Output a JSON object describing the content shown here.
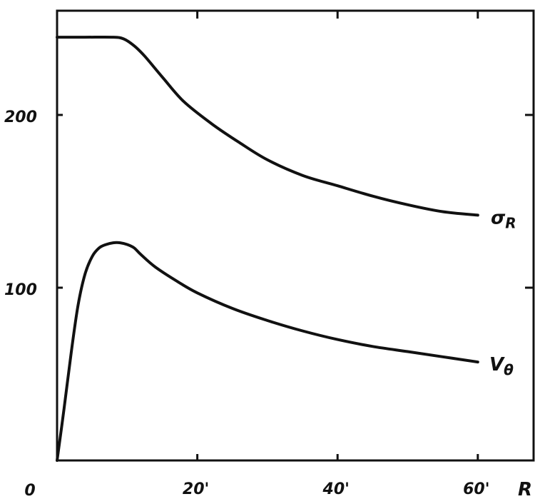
{
  "chart_data": {
    "type": "line",
    "title": "",
    "xlabel": "R",
    "ylabel": "",
    "xlim": [
      0,
      68
    ],
    "ylim": [
      0,
      250
    ],
    "grid": false,
    "origin_label": "0",
    "x_ticks": [
      {
        "value": 20,
        "label": "20'"
      },
      {
        "value": 40,
        "label": "40'"
      },
      {
        "value": 60,
        "label": "60'"
      }
    ],
    "y_ticks": [
      {
        "value": 100,
        "label": "100"
      },
      {
        "value": 200,
        "label": "200"
      }
    ],
    "series": [
      {
        "name": "σR",
        "label_main": "σ",
        "label_sub": "R",
        "x": [
          0,
          4,
          8,
          9.5,
          11,
          12.5,
          15,
          18,
          22,
          26,
          30,
          35,
          40,
          45,
          50,
          55,
          60
        ],
        "y": [
          245,
          245,
          245,
          244,
          240,
          234,
          222,
          208,
          195,
          184,
          174,
          165,
          159,
          153,
          148,
          144,
          142
        ]
      },
      {
        "name": "Vθ",
        "label_main": "V",
        "label_sub": "θ",
        "x": [
          0,
          1,
          2,
          3,
          4,
          5,
          6,
          7,
          8,
          9,
          10,
          11,
          12,
          14,
          17,
          20,
          25,
          30,
          35,
          40,
          45,
          50,
          55,
          60
        ],
        "y": [
          0,
          30,
          62,
          90,
          108,
          118,
          123,
          125,
          126,
          126,
          125,
          123,
          119,
          112,
          104,
          97,
          88,
          81,
          75,
          70,
          66,
          63,
          60,
          57
        ]
      }
    ]
  }
}
